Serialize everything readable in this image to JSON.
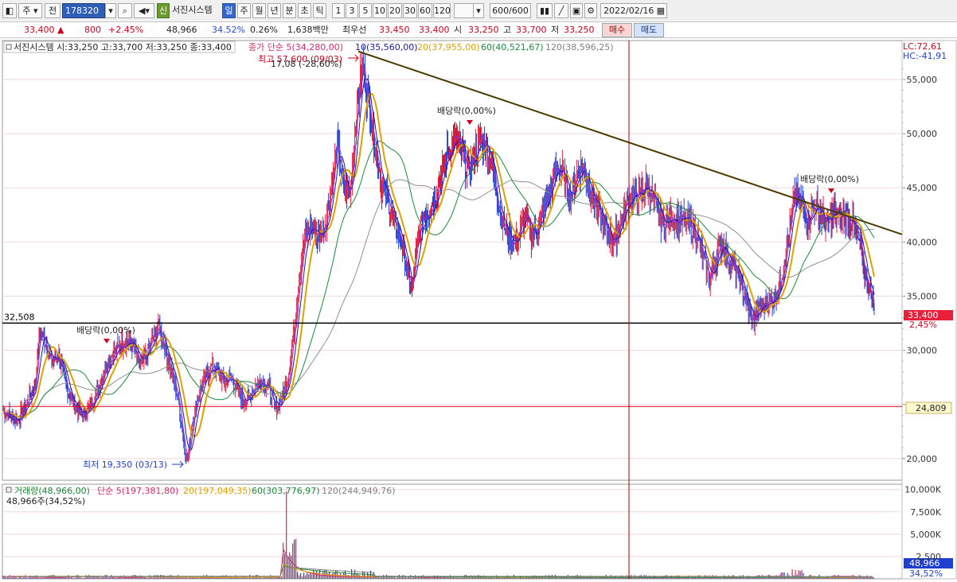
{
  "toolbar": {
    "period_label": "주",
    "prev_label": "전",
    "code": "178320",
    "new_label": "신",
    "stock_name": "서진시스템",
    "period_buttons": [
      "일",
      "주",
      "월",
      "년",
      "분",
      "초",
      "틱"
    ],
    "num_buttons": [
      "1",
      "3",
      "5",
      "10",
      "20",
      "30",
      "60",
      "120"
    ],
    "count": "600/600",
    "date": "2022/02/16"
  },
  "quote": {
    "price": "33,400",
    "change": "800",
    "change_pct": "+2.45%",
    "volume": "48,966",
    "vol_ratio": "34.52%",
    "turnover": "0.26%",
    "amount": "1,638백만",
    "best_label": "최우선",
    "best_ask": "33,450",
    "best_bid": "33,400",
    "open_label": "시",
    "open": "33,250",
    "high_label": "고",
    "high": "33,700",
    "low_label": "저",
    "low": "33,250",
    "buy_label": "매수",
    "sell_label": "매도"
  },
  "colors": {
    "up": "#e8203a",
    "down": "#1f3fd0",
    "ma5": "#8a2be2",
    "ma10": "#1a1aa0",
    "ma20": "#e0a000",
    "ma60": "#1b8a3a",
    "ma120": "#909090",
    "trend": "#4a3a00"
  },
  "chart_data": [
    {
      "type": "candlestick",
      "header": "서진시스템 시:33,250 고:33,700 저:33,250 종:33,400",
      "legend": [
        {
          "label": "종가 단순 5(34,280,00)",
          "color": "#d82b6a"
        },
        {
          "label": "10(35,560,00)",
          "color": "#1a1aa0"
        },
        {
          "label": "20(37,955,00)",
          "color": "#e0a000"
        },
        {
          "label": "60(40,521,67)",
          "color": "#1b8a3a"
        },
        {
          "label": "120(38,596,25)",
          "color": "#808080"
        }
      ],
      "yticks": [
        20000,
        25000,
        30000,
        35000,
        40000,
        45000,
        50000,
        55000
      ],
      "ytick_labels": [
        "20,000",
        "",
        "30,000",
        "35,000",
        "40,000",
        "45,000",
        "50,000",
        "55,000"
      ],
      "ylim": [
        18000,
        58600
      ],
      "annotations": {
        "high_label": "최고 57,600 (09/03)",
        "high_sub": "17,08 (-28,60%)",
        "low_label": "최저 19,350 (03/13)",
        "dividend_labels": [
          "배당락(0,00%)",
          "배당락(0,00%)",
          "배당락(0,00%)"
        ],
        "support_value": 32508,
        "support_label": "32,508",
        "alert_value": 24809,
        "alert_label": "24,809",
        "last_price_label": "33,400",
        "last_change_label": "2,45%",
        "lc_label": "LC:72,61",
        "hc_label": "HC:-41,91"
      },
      "path": [
        [
          0,
          24500
        ],
        [
          8,
          24000
        ],
        [
          18,
          23500
        ],
        [
          28,
          24800
        ],
        [
          40,
          26800
        ],
        [
          46,
          31800
        ],
        [
          52,
          31000
        ],
        [
          60,
          29000
        ],
        [
          70,
          29500
        ],
        [
          80,
          26500
        ],
        [
          90,
          24800
        ],
        [
          100,
          24000
        ],
        [
          108,
          24600
        ],
        [
          116,
          26000
        ],
        [
          124,
          27500
        ],
        [
          132,
          29000
        ],
        [
          140,
          29800
        ],
        [
          148,
          30500
        ],
        [
          156,
          31000
        ],
        [
          164,
          30200
        ],
        [
          172,
          28500
        ],
        [
          180,
          29500
        ],
        [
          188,
          31000
        ],
        [
          196,
          32200
        ],
        [
          204,
          30000
        ],
        [
          212,
          28000
        ],
        [
          220,
          25500
        ],
        [
          228,
          21000
        ],
        [
          232,
          19800
        ],
        [
          238,
          23500
        ],
        [
          246,
          26000
        ],
        [
          254,
          27500
        ],
        [
          262,
          28500
        ],
        [
          270,
          28000
        ],
        [
          278,
          27000
        ],
        [
          286,
          27500
        ],
        [
          294,
          26500
        ],
        [
          302,
          25200
        ],
        [
          310,
          25800
        ],
        [
          318,
          26800
        ],
        [
          326,
          27300
        ],
        [
          334,
          26500
        ],
        [
          342,
          24500
        ],
        [
          350,
          25500
        ],
        [
          358,
          27500
        ],
        [
          366,
          32000
        ],
        [
          372,
          37000
        ],
        [
          380,
          40500
        ],
        [
          388,
          41500
        ],
        [
          396,
          40500
        ],
        [
          404,
          41500
        ],
        [
          412,
          44500
        ],
        [
          420,
          49000
        ],
        [
          428,
          45000
        ],
        [
          436,
          44500
        ],
        [
          444,
          52000
        ],
        [
          452,
          56500
        ],
        [
          460,
          52500
        ],
        [
          468,
          49000
        ],
        [
          476,
          45000
        ],
        [
          484,
          44000
        ],
        [
          492,
          41500
        ],
        [
          500,
          40500
        ],
        [
          508,
          37000
        ],
        [
          514,
          35500
        ],
        [
          520,
          39500
        ],
        [
          528,
          42500
        ],
        [
          536,
          43000
        ],
        [
          544,
          44500
        ],
        [
          552,
          46500
        ],
        [
          560,
          48500
        ],
        [
          568,
          49500
        ],
        [
          576,
          48500
        ],
        [
          584,
          46500
        ],
        [
          592,
          48000
        ],
        [
          600,
          49500
        ],
        [
          608,
          49000
        ],
        [
          616,
          46500
        ],
        [
          624,
          43000
        ],
        [
          632,
          41000
        ],
        [
          640,
          40000
        ],
        [
          648,
          40500
        ],
        [
          656,
          42500
        ],
        [
          664,
          40500
        ],
        [
          672,
          41500
        ],
        [
          680,
          43000
        ],
        [
          688,
          45000
        ],
        [
          696,
          47000
        ],
        [
          704,
          46000
        ],
        [
          712,
          44000
        ],
        [
          720,
          46000
        ],
        [
          728,
          47000
        ],
        [
          736,
          45500
        ],
        [
          744,
          43500
        ],
        [
          752,
          42000
        ],
        [
          760,
          40800
        ],
        [
          768,
          40000
        ],
        [
          776,
          42000
        ],
        [
          784,
          43500
        ],
        [
          792,
          44500
        ],
        [
          800,
          44000
        ],
        [
          808,
          45500
        ],
        [
          816,
          44000
        ],
        [
          824,
          42500
        ],
        [
          832,
          41500
        ],
        [
          840,
          42500
        ],
        [
          848,
          42000
        ],
        [
          856,
          42000
        ],
        [
          864,
          41500
        ],
        [
          872,
          40500
        ],
        [
          880,
          38500
        ],
        [
          888,
          36500
        ],
        [
          896,
          38500
        ],
        [
          904,
          40000
        ],
        [
          912,
          38500
        ],
        [
          920,
          37500
        ],
        [
          928,
          36000
        ],
        [
          936,
          34000
        ],
        [
          942,
          32600
        ],
        [
          948,
          33500
        ],
        [
          956,
          34200
        ],
        [
          964,
          34500
        ],
        [
          972,
          35200
        ],
        [
          980,
          37500
        ],
        [
          988,
          41000
        ],
        [
          996,
          44500
        ],
        [
          1004,
          43500
        ],
        [
          1012,
          42000
        ],
        [
          1020,
          43500
        ],
        [
          1028,
          42500
        ],
        [
          1036,
          41500
        ],
        [
          1044,
          42800
        ],
        [
          1052,
          42200
        ],
        [
          1060,
          42500
        ],
        [
          1068,
          41800
        ],
        [
          1076,
          40000
        ],
        [
          1084,
          37000
        ],
        [
          1092,
          35000
        ],
        [
          1098,
          33400
        ]
      ],
      "trendline": [
        [
          450,
          57600
        ],
        [
          1133,
          40700
        ]
      ],
      "vline_x": 790
    },
    {
      "type": "bar",
      "header": "거래량(48,966,00)",
      "sub_header": "48,966주(34,52%)",
      "legend": [
        {
          "label": "단순 5(197,381,80)",
          "color": "#d82b6a"
        },
        {
          "label": "20(197,049,35)",
          "color": "#e0a000"
        },
        {
          "label": "60(303,776,97)",
          "color": "#1b8a3a"
        },
        {
          "label": "120(244,949,76)",
          "color": "#808080"
        }
      ],
      "yticks": [
        2500,
        5000,
        7500,
        10000
      ],
      "ytick_labels": [
        "2,500",
        "5,000K",
        "7,500K",
        "10,000K"
      ],
      "ylim": [
        0,
        10600
      ],
      "last_volume_label": "48,966",
      "last_ratio_label": "34,52%"
    }
  ]
}
